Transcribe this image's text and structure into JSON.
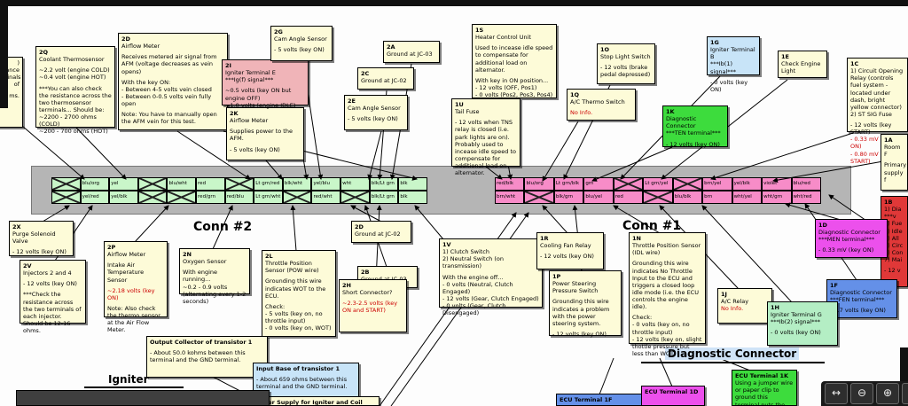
{
  "colors": {
    "yellow": "#fdfbd8",
    "pink": "#f0b4b8",
    "green": "#3ddc3d",
    "lightgreen": "#b4eec4",
    "blue": "#6490e8",
    "lightblue": "#c8e4f8",
    "magenta": "#ec50ec",
    "red": "#e03838",
    "dark": "#3f3f3f",
    "pin_green": "#c9f6c9",
    "pin_pink": "#f78cc8",
    "strip_gray": "#b5b5b5",
    "warn_text": "#cc0000",
    "diag_highlight": "#cfe3f7"
  },
  "connector": {
    "conn2_label": "Conn #2",
    "conn1_label": "Conn #1",
    "conn2": {
      "row1": [
        "",
        "blu/org",
        "yel",
        "",
        "blu/wht",
        "red",
        "",
        "Lt grn/red",
        "blk/wht",
        "yel/blu",
        "wht",
        "blk/Lt grn",
        "blk"
      ],
      "row2": [
        "",
        "yel/red",
        "yel/blk",
        "",
        "",
        "red/grn",
        "red/blu",
        "Lt grn/wht",
        "",
        "red/wht",
        "",
        "blk/Lt grn",
        "blk"
      ]
    },
    "conn1": {
      "row1": [
        "red/blk",
        "blu/org",
        "Lt grn/blk",
        "grn",
        "",
        "Lt grn/yel",
        "",
        "brn/yel",
        "yel/blk",
        "violet",
        "blu/red"
      ],
      "row2": [
        "brn/wht",
        "",
        "blk/grn",
        "blu/yel",
        "red",
        "",
        "blu/blk",
        "brn",
        "wht/yel",
        "wht/grn",
        "wht/red"
      ]
    }
  },
  "section_labels": {
    "igniter": "Igniter",
    "diagnostic": "Diagnostic Connector"
  },
  "toolbar": {
    "buttons": [
      {
        "name": "fit-width",
        "glyph": "↔"
      },
      {
        "name": "zoom-out",
        "glyph": "⊖"
      },
      {
        "name": "zoom-in",
        "glyph": "⊕"
      },
      {
        "name": "print",
        "glyph": "⎙"
      }
    ]
  },
  "boxes": [
    {
      "id": "cut-left",
      "color": "yellow",
      "lines": [
        {
          "t": ")"
        },
        {
          "t": "ance"
        },
        {
          "t": "minals of"
        },
        {
          "t": ""
        },
        {
          "t": "ms."
        }
      ]
    },
    {
      "id": "2Q",
      "color": "yellow",
      "lines": [
        {
          "t": "2Q",
          "b": 1
        },
        {
          "t": "Coolant Thermosensor"
        },
        {
          "t": ""
        },
        {
          "t": "~2.2 volt (engine COLD)"
        },
        {
          "t": "~0.4 volt (engine HOT)"
        },
        {
          "t": ""
        },
        {
          "t": "***You can also check the resistance across the two thermosensor terminals... Should be:"
        },
        {
          "t": "~2200 - 2700 ohms (COLD)"
        },
        {
          "t": "~200 - 700 ohms (HOT)"
        }
      ]
    },
    {
      "id": "2D",
      "color": "yellow",
      "lines": [
        {
          "t": "2D",
          "b": 1
        },
        {
          "t": "Airflow Meter"
        },
        {
          "t": ""
        },
        {
          "t": "Receives metered air signal from AFM (voltage decreases as vein opens)"
        },
        {
          "t": ""
        },
        {
          "t": "With the key ON:"
        },
        {
          "t": "- Between 4-5 volts vein closed"
        },
        {
          "t": "- Between 0-0.5 volts vein fully open"
        },
        {
          "t": ""
        },
        {
          "t": "Note: You have to manually open the AFM vein for this test."
        }
      ]
    },
    {
      "id": "2K",
      "color": "yellow",
      "lines": [
        {
          "t": "2K",
          "b": 1
        },
        {
          "t": "Airflow Meter"
        },
        {
          "t": ""
        },
        {
          "t": "Supplies power to the AFM."
        },
        {
          "t": ""
        },
        {
          "t": "- 5 volts (key ON)"
        }
      ]
    },
    {
      "id": "2I",
      "color": "pink",
      "lines": [
        {
          "t": "2I",
          "b": 1
        },
        {
          "t": "Igniter Terminal E"
        },
        {
          "t": "***Ig(f) signal***"
        },
        {
          "t": ""
        },
        {
          "t": "~0.5 volts (key ON but engine OFF)"
        },
        {
          "t": "~1.0 volts (engine IDLE)"
        }
      ]
    },
    {
      "id": "2G",
      "color": "yellow",
      "lines": [
        {
          "t": "2G",
          "b": 1
        },
        {
          "t": "Cam Angle Sensor"
        },
        {
          "t": ""
        },
        {
          "t": "- 5 volts (key ON)"
        }
      ]
    },
    {
      "id": "2A",
      "color": "yellow",
      "lines": [
        {
          "t": "2A",
          "b": 1
        },
        {
          "t": "Ground at JC-03"
        }
      ]
    },
    {
      "id": "2C",
      "color": "yellow",
      "lines": [
        {
          "t": "2C",
          "b": 1
        },
        {
          "t": "Ground at JC-02"
        }
      ]
    },
    {
      "id": "2E",
      "color": "yellow",
      "lines": [
        {
          "t": "2E",
          "b": 1
        },
        {
          "t": "Cam Angle Sensor"
        },
        {
          "t": ""
        },
        {
          "t": "- 5 volts (key ON)"
        }
      ]
    },
    {
      "id": "1S",
      "color": "yellow",
      "lines": [
        {
          "t": "1S",
          "b": 1
        },
        {
          "t": "Heater Control Unit"
        },
        {
          "t": ""
        },
        {
          "t": "Used to incease idle speed to compensate for additional load on alternator."
        },
        {
          "t": ""
        },
        {
          "t": "With key in ON position..."
        },
        {
          "t": "- 12 volts (OFF, Pos1)"
        },
        {
          "t": "- 0 volts (Pos2, Pos3, Pos4)"
        }
      ]
    },
    {
      "id": "1U",
      "color": "yellow",
      "lines": [
        {
          "t": "1U",
          "b": 1
        },
        {
          "t": "Tail Fuse"
        },
        {
          "t": ""
        },
        {
          "t": "- 12 volts when TNS relay is closed (i.e. park lights are on). Probably used to incease idle speed to compensate for additional load on alternator."
        }
      ]
    },
    {
      "id": "1Q",
      "color": "yellow",
      "lines": [
        {
          "t": "1Q",
          "b": 1
        },
        {
          "t": "A/C Thermo Switch"
        },
        {
          "t": ""
        },
        {
          "t": "No Info.",
          "r": 1
        }
      ]
    },
    {
      "id": "1O",
      "color": "yellow",
      "lines": [
        {
          "t": "1O",
          "b": 1
        },
        {
          "t": "Stop Light Switch"
        },
        {
          "t": ""
        },
        {
          "t": "- 12 volts (brake pedal depressed)"
        }
      ]
    },
    {
      "id": "1K",
      "color": "green",
      "lines": [
        {
          "t": "1K",
          "b": 1
        },
        {
          "t": "Diagnostic Connector"
        },
        {
          "t": "***TEN terminal***"
        },
        {
          "t": ""
        },
        {
          "t": "- 12 volts (key ON)"
        }
      ]
    },
    {
      "id": "1G",
      "color": "lightblue",
      "lines": [
        {
          "t": "1G",
          "b": 1
        },
        {
          "t": "Igniter Terminal B"
        },
        {
          "t": "***Ib(1) signal***"
        },
        {
          "t": ""
        },
        {
          "t": "- 0 volts (key ON)"
        }
      ]
    },
    {
      "id": "1E",
      "color": "yellow",
      "lines": [
        {
          "t": "1E",
          "b": 1
        },
        {
          "t": "Check Engine Light"
        }
      ]
    },
    {
      "id": "1C",
      "color": "yellow",
      "lines": [
        {
          "t": "1C",
          "b": 1
        },
        {
          "t": "1) Circuit Opening Relay (controls fuel system - located under dash, bright yellow connector)"
        },
        {
          "t": "2) ST SIG Fuse"
        },
        {
          "t": ""
        },
        {
          "t": "- 12 volts (key START)"
        },
        {
          "t": "- 0.33 mV (key ON)",
          "r": 1
        },
        {
          "t": "- 0.80 mV (key START)",
          "r": 1
        }
      ]
    },
    {
      "id": "1A",
      "color": "yellow",
      "lines": [
        {
          "t": "1A",
          "b": 1
        },
        {
          "t": "Room F"
        },
        {
          "t": ""
        },
        {
          "t": "Primary"
        },
        {
          "t": "supply f"
        }
      ]
    },
    {
      "id": "1B",
      "color": "red",
      "lines": [
        {
          "t": "1B",
          "b": 1
        },
        {
          "t": "1) Dia"
        },
        {
          "t": "***v"
        },
        {
          "t": "2) Fue"
        },
        {
          "t": "3) Idle"
        },
        {
          "t": "4) All"
        },
        {
          "t": "5) Circ"
        },
        {
          "t": "6) Con"
        },
        {
          "t": "7) Mai"
        },
        {
          "t": ""
        },
        {
          "t": "- 12 v"
        }
      ]
    },
    {
      "id": "1D",
      "color": "magenta",
      "lines": [
        {
          "t": "1D",
          "b": 1
        },
        {
          "t": "Diagnostic Connector"
        },
        {
          "t": "***MEN terminal***"
        },
        {
          "t": ""
        },
        {
          "t": "- 0.33 mV (key ON)"
        }
      ]
    },
    {
      "id": "1F",
      "color": "blue",
      "lines": [
        {
          "t": "1F",
          "b": 1
        },
        {
          "t": "Diagnostic Connector"
        },
        {
          "t": "***FEN terminal***"
        },
        {
          "t": ""
        },
        {
          "t": "- 0.7 volts (key ON)"
        }
      ]
    },
    {
      "id": "2X",
      "color": "yellow",
      "lines": [
        {
          "t": "2X",
          "b": 1
        },
        {
          "t": "Purge Solenoid Valve"
        },
        {
          "t": ""
        },
        {
          "t": "- 12 volts (key ON)"
        }
      ]
    },
    {
      "id": "2V",
      "color": "yellow",
      "lines": [
        {
          "t": "2V",
          "b": 1
        },
        {
          "t": "Injectors 2 and 4"
        },
        {
          "t": ""
        },
        {
          "t": "- 12 volts (key ON)"
        },
        {
          "t": ""
        },
        {
          "t": "***Check the resistance across the two terminals of each injector."
        },
        {
          "t": "Should be 12-16 ohms."
        }
      ]
    },
    {
      "id": "2P",
      "color": "yellow",
      "lines": [
        {
          "t": "2P",
          "b": 1
        },
        {
          "t": "Airflow Meter"
        },
        {
          "t": ""
        },
        {
          "t": "Intake Air Temperature Sensor"
        },
        {
          "t": ""
        },
        {
          "t": "~2.18 volts (key ON)",
          "r": 1
        },
        {
          "t": ""
        },
        {
          "t": "Note: Also check the thermo sensor at the Air Flow Meter."
        }
      ]
    },
    {
      "id": "2N",
      "color": "yellow",
      "lines": [
        {
          "t": "2N",
          "b": 1
        },
        {
          "t": "Oxygen Sensor"
        },
        {
          "t": ""
        },
        {
          "t": "With engine running..."
        },
        {
          "t": "~0.2 - 0.9 volts (alternating every 1-2 seconds)"
        }
      ]
    },
    {
      "id": "2L",
      "color": "yellow",
      "lines": [
        {
          "t": "2L",
          "b": 1
        },
        {
          "t": "Throttle Position Sensor (POW wire)"
        },
        {
          "t": ""
        },
        {
          "t": "Grounding this wire indicates WOT to the ECU."
        },
        {
          "t": ""
        },
        {
          "t": "Check:"
        },
        {
          "t": "- 5 volts (key on, no throttle input)"
        },
        {
          "t": "- 0 volts (key on, WOT)"
        }
      ]
    },
    {
      "id": "2D-gnd",
      "color": "yellow",
      "lines": [
        {
          "t": "2D",
          "b": 1
        },
        {
          "t": "Ground at JC-02"
        }
      ]
    },
    {
      "id": "2B",
      "color": "yellow",
      "lines": [
        {
          "t": "2B",
          "b": 1
        },
        {
          "t": "Ground at JC-03"
        }
      ]
    },
    {
      "id": "2H",
      "color": "yellow",
      "lines": [
        {
          "t": "2H",
          "b": 1
        },
        {
          "t": "Short Connector?"
        },
        {
          "t": ""
        },
        {
          "t": "~2.3-2.5 volts (key ON and START)",
          "r": 1
        }
      ]
    },
    {
      "id": "1V",
      "color": "yellow",
      "lines": [
        {
          "t": "1V",
          "b": 1
        },
        {
          "t": "1) Clutch Switch"
        },
        {
          "t": "2) Neutral Switch (on transmission)"
        },
        {
          "t": ""
        },
        {
          "t": "With the engine off..."
        },
        {
          "t": "- 0 volts (Neutral, Clutch Engaged)"
        },
        {
          "t": "- 12 volts (Gear, Clutch Engaged)"
        },
        {
          "t": "- 0 volts (Gear, Clutch Disengaged)"
        }
      ]
    },
    {
      "id": "1R",
      "color": "yellow",
      "lines": [
        {
          "t": "1R",
          "b": 1
        },
        {
          "t": "Cooling Fan Relay"
        },
        {
          "t": ""
        },
        {
          "t": "- 12 volts (key ON)"
        }
      ]
    },
    {
      "id": "1P",
      "color": "yellow",
      "lines": [
        {
          "t": "1P",
          "b": 1
        },
        {
          "t": "Power Steering Pressure Switch"
        },
        {
          "t": ""
        },
        {
          "t": "Grounding this wire indicates a problem with the power steering system."
        },
        {
          "t": ""
        },
        {
          "t": "- 12 volts (key ON)"
        }
      ]
    },
    {
      "id": "1N",
      "color": "yellow",
      "lines": [
        {
          "t": "1N",
          "b": 1
        },
        {
          "t": "Throttle Position Sensor (IDL wire)"
        },
        {
          "t": ""
        },
        {
          "t": "Grounding this wire indicates No Throttle Input to the ECU and triggers a closed loop idle mode (i.e. the ECU controls the engine idle)."
        },
        {
          "t": ""
        },
        {
          "t": "Check:"
        },
        {
          "t": "- 0 volts (key on, no throttle input)"
        },
        {
          "t": "- 12 volts (key on, slight thottle pressure but less than WOT)"
        }
      ]
    },
    {
      "id": "1J",
      "color": "yellow",
      "lines": [
        {
          "t": "1J",
          "b": 1
        },
        {
          "t": "A/C Relay"
        },
        {
          "t": "No Info.",
          "r": 1
        }
      ]
    },
    {
      "id": "1H",
      "color": "lightgreen",
      "lines": [
        {
          "t": "1H",
          "b": 1
        },
        {
          "t": "Igniter Terminal G"
        },
        {
          "t": "***Ib(2) signal***"
        },
        {
          "t": ""
        },
        {
          "t": "- 0 volts (key ON)"
        }
      ]
    },
    {
      "id": "out-collector",
      "color": "yellow",
      "lines": [
        {
          "t": "Output Collector of transistor 1",
          "b": 1
        },
        {
          "t": ""
        },
        {
          "t": "- About 50.0 kohms between this terminal and the GND terminal."
        }
      ]
    },
    {
      "id": "input-base",
      "color": "lightblue",
      "lines": [
        {
          "t": "Input Base of transistor 1",
          "b": 1
        },
        {
          "t": ""
        },
        {
          "t": "- About 659 ohms between this terminal and the GND terminal."
        }
      ]
    },
    {
      "id": "power-supply",
      "color": "yellow",
      "lines": [
        {
          "t": "Power Supply for Igniter and Coil Pack from",
          "b": 1
        }
      ]
    },
    {
      "id": "ecu-1f",
      "color": "blue",
      "lines": [
        {
          "t": "ECU Terminal 1F",
          "b": 1
        }
      ]
    },
    {
      "id": "ecu-1d",
      "color": "magenta",
      "lines": [
        {
          "t": "ECU Terminal 1D",
          "b": 1
        }
      ]
    },
    {
      "id": "ecu-1k",
      "color": "green",
      "lines": [
        {
          "t": "ECU Terminal 1K",
          "b": 1
        },
        {
          "t": "Using a jumper wire or paper clip to ground this terminal puts the car into diagnostic mode. See Check"
        }
      ]
    },
    {
      "id": "igniter-block",
      "color": "dark",
      "lines": []
    }
  ]
}
